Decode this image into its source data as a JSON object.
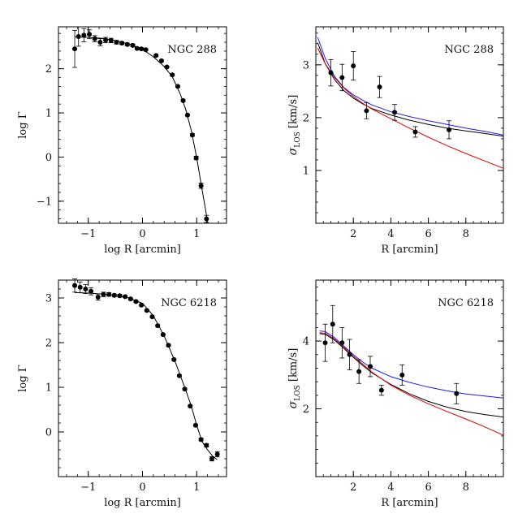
{
  "chart_data": [
    {
      "id": "ngc288-profile",
      "type": "scatter",
      "label": "NGC 288",
      "xlabel": "log R [arcmin]",
      "ylabel": "log Γ",
      "xlim": [
        -1.55,
        1.55
      ],
      "ylim": [
        -1.5,
        2.95
      ],
      "xticks": [
        -1,
        0,
        1
      ],
      "yticks": [
        -1,
        0,
        1,
        2
      ],
      "series": [
        {
          "points": [
            {
              "x": -1.25,
              "y": 2.45,
              "err": 0.42
            },
            {
              "x": -1.18,
              "y": 2.73,
              "err": 0.22
            },
            {
              "x": -1.08,
              "y": 2.76,
              "err": 0.15
            },
            {
              "x": -0.98,
              "y": 2.78,
              "err": 0.1
            },
            {
              "x": -0.88,
              "y": 2.68,
              "err": 0.07
            },
            {
              "x": -0.78,
              "y": 2.6,
              "err": 0.08
            },
            {
              "x": -0.68,
              "y": 2.65,
              "err": 0.06
            },
            {
              "x": -0.58,
              "y": 2.64,
              "err": 0.05
            },
            {
              "x": -0.48,
              "y": 2.6,
              "err": 0.04
            },
            {
              "x": -0.38,
              "y": 2.58,
              "err": 0.03
            },
            {
              "x": -0.28,
              "y": 2.55,
              "err": 0.03
            },
            {
              "x": -0.18,
              "y": 2.53,
              "err": 0.03
            },
            {
              "x": -0.1,
              "y": 2.46,
              "err": 0.02
            },
            {
              "x": -0.02,
              "y": 2.45,
              "err": 0.02
            },
            {
              "x": 0.06,
              "y": 2.43,
              "err": 0.02
            },
            {
              "x": 0.25,
              "y": 2.3,
              "err": 0.02
            },
            {
              "x": 0.35,
              "y": 2.18,
              "err": 0.02
            },
            {
              "x": 0.45,
              "y": 2.04,
              "err": 0.02
            },
            {
              "x": 0.55,
              "y": 1.86,
              "err": 0.02
            },
            {
              "x": 0.65,
              "y": 1.6,
              "err": 0.02
            },
            {
              "x": 0.75,
              "y": 1.28,
              "err": 0.02
            },
            {
              "x": 0.83,
              "y": 0.95,
              "err": 0.02
            },
            {
              "x": 0.92,
              "y": 0.5,
              "err": 0.03
            },
            {
              "x": 0.99,
              "y": -0.02,
              "err": 0.04
            },
            {
              "x": 1.08,
              "y": -0.65,
              "err": 0.06
            },
            {
              "x": 1.18,
              "y": -1.4,
              "err": 0.08
            }
          ],
          "model": {
            "color": "#000000",
            "x": [
              -1.25,
              -1.0,
              -0.75,
              -0.5,
              -0.25,
              0.0,
              0.2,
              0.4,
              0.55,
              0.7,
              0.8,
              0.9,
              1.0,
              1.1,
              1.2
            ],
            "y": [
              2.72,
              2.71,
              2.69,
              2.64,
              2.56,
              2.44,
              2.27,
              2.05,
              1.82,
              1.42,
              1.07,
              0.6,
              -0.02,
              -0.75,
              -1.45
            ]
          }
        }
      ]
    },
    {
      "id": "ngc288-dispersion",
      "type": "scatter",
      "label": "NGC 288",
      "xlabel": "R [arcmin]",
      "ylabel_sym": "σ",
      "ylabel_sub": "LOS",
      "ylabel_rest": " [km/s]",
      "xlim": [
        0,
        10
      ],
      "ylim": [
        0,
        3.72
      ],
      "xticks": [
        2,
        4,
        6,
        8
      ],
      "yticks": [
        1,
        2,
        3
      ],
      "series": [
        {
          "points": [
            {
              "x": 0.8,
              "y": 2.85,
              "err": 0.25
            },
            {
              "x": 1.4,
              "y": 2.76,
              "err": 0.25
            },
            {
              "x": 2.0,
              "y": 2.98,
              "err": 0.27
            },
            {
              "x": 2.7,
              "y": 2.13,
              "err": 0.15
            },
            {
              "x": 3.4,
              "y": 2.58,
              "err": 0.2
            },
            {
              "x": 4.2,
              "y": 2.1,
              "err": 0.15
            },
            {
              "x": 5.3,
              "y": 1.73,
              "err": 0.1
            },
            {
              "x": 7.1,
              "y": 1.77,
              "err": 0.17
            }
          ]
        },
        {
          "name": "",
          "color": "#1a1aff",
          "x": [
            0.1,
            0.5,
            1,
            1.5,
            2,
            2.5,
            3,
            4,
            5,
            6,
            7,
            8,
            9,
            10
          ],
          "y": [
            3.52,
            3.12,
            2.78,
            2.57,
            2.43,
            2.33,
            2.24,
            2.11,
            2.02,
            1.94,
            1.87,
            1.8,
            1.74,
            1.67
          ]
        },
        {
          "name": "",
          "color": "#000000",
          "x": [
            0.1,
            0.5,
            1,
            1.5,
            2,
            2.5,
            3,
            4,
            5,
            6,
            7,
            8,
            9,
            10
          ],
          "y": [
            3.42,
            3.02,
            2.72,
            2.51,
            2.37,
            2.26,
            2.17,
            2.05,
            1.95,
            1.87,
            1.8,
            1.75,
            1.7,
            1.65
          ]
        },
        {
          "name": "",
          "color": "#e00000",
          "x": [
            0.1,
            0.5,
            1,
            1.5,
            2,
            2.5,
            3,
            4,
            5,
            6,
            7,
            8,
            9,
            10
          ],
          "y": [
            3.32,
            3.02,
            2.76,
            2.56,
            2.4,
            2.27,
            2.16,
            1.98,
            1.8,
            1.63,
            1.47,
            1.32,
            1.18,
            1.04
          ]
        }
      ]
    },
    {
      "id": "ngc6218-profile",
      "type": "scatter",
      "label": "NGC 6218",
      "xlabel": "log R [arcmin]",
      "ylabel": "log Γ",
      "xlim": [
        -1.55,
        1.55
      ],
      "ylim": [
        -1.0,
        3.4
      ],
      "xticks": [
        -1,
        0,
        1
      ],
      "yticks": [
        0,
        1,
        2,
        3
      ],
      "series": [
        {
          "points": [
            {
              "x": -1.25,
              "y": 3.28,
              "err": 0.15
            },
            {
              "x": -1.15,
              "y": 3.24,
              "err": 0.12
            },
            {
              "x": -1.05,
              "y": 3.2,
              "err": 0.1
            },
            {
              "x": -0.95,
              "y": 3.15,
              "err": 0.08
            },
            {
              "x": -0.82,
              "y": 3.02,
              "err": 0.07
            },
            {
              "x": -0.72,
              "y": 3.08,
              "err": 0.05
            },
            {
              "x": -0.62,
              "y": 3.08,
              "err": 0.04
            },
            {
              "x": -0.52,
              "y": 3.06,
              "err": 0.03
            },
            {
              "x": -0.42,
              "y": 3.05,
              "err": 0.03
            },
            {
              "x": -0.32,
              "y": 3.03,
              "err": 0.02
            },
            {
              "x": -0.22,
              "y": 2.98,
              "err": 0.02
            },
            {
              "x": -0.12,
              "y": 2.92,
              "err": 0.02
            },
            {
              "x": -0.02,
              "y": 2.84,
              "err": 0.02
            },
            {
              "x": 0.08,
              "y": 2.72,
              "err": 0.02
            },
            {
              "x": 0.18,
              "y": 2.58,
              "err": 0.02
            },
            {
              "x": 0.28,
              "y": 2.38,
              "err": 0.02
            },
            {
              "x": 0.38,
              "y": 2.18,
              "err": 0.02
            },
            {
              "x": 0.48,
              "y": 1.94,
              "err": 0.02
            },
            {
              "x": 0.58,
              "y": 1.62,
              "err": 0.02
            },
            {
              "x": 0.68,
              "y": 1.26,
              "err": 0.02
            },
            {
              "x": 0.78,
              "y": 0.96,
              "err": 0.02
            },
            {
              "x": 0.88,
              "y": 0.58,
              "err": 0.02
            },
            {
              "x": 0.98,
              "y": 0.15,
              "err": 0.02
            },
            {
              "x": 1.08,
              "y": -0.17,
              "err": 0.03
            },
            {
              "x": 1.18,
              "y": -0.3,
              "err": 0.04
            },
            {
              "x": 1.28,
              "y": -0.6,
              "err": 0.05
            },
            {
              "x": 1.38,
              "y": -0.5,
              "err": 0.06
            }
          ],
          "model": {
            "color": "#000000",
            "x": [
              -1.25,
              -1.0,
              -0.75,
              -0.5,
              -0.25,
              0.0,
              0.2,
              0.4,
              0.6,
              0.8,
              0.9,
              1.0,
              1.1,
              1.2,
              1.3,
              1.38
            ],
            "y": [
              3.12,
              3.11,
              3.09,
              3.06,
              3.0,
              2.88,
              2.6,
              2.15,
              1.58,
              0.93,
              0.58,
              0.15,
              -0.22,
              -0.4,
              -0.55,
              -0.62
            ]
          }
        }
      ]
    },
    {
      "id": "ngc6218-dispersion",
      "type": "scatter",
      "label": "NGC 6218",
      "xlabel": "R [arcmin]",
      "ylabel_sym": "σ",
      "ylabel_sub": "LOS",
      "ylabel_rest": " [km/s]",
      "xlim": [
        0,
        10
      ],
      "ylim": [
        0,
        5.8
      ],
      "xticks": [
        2,
        4,
        6,
        8
      ],
      "yticks": [
        2,
        4
      ],
      "series": [
        {
          "points": [
            {
              "x": 0.5,
              "y": 3.95,
              "err": 0.55
            },
            {
              "x": 0.9,
              "y": 4.5,
              "err": 0.55
            },
            {
              "x": 1.4,
              "y": 3.95,
              "err": 0.45
            },
            {
              "x": 1.8,
              "y": 3.6,
              "err": 0.45
            },
            {
              "x": 2.3,
              "y": 3.1,
              "err": 0.35
            },
            {
              "x": 2.9,
              "y": 3.25,
              "err": 0.3
            },
            {
              "x": 3.5,
              "y": 2.55,
              "err": 0.15
            },
            {
              "x": 4.6,
              "y": 3.0,
              "err": 0.3
            },
            {
              "x": 7.5,
              "y": 2.45,
              "err": 0.3
            }
          ]
        },
        {
          "name": "",
          "color": "#1a1aff",
          "x": [
            0.2,
            0.5,
            1,
            1.5,
            2,
            2.5,
            3,
            4,
            5,
            6,
            7,
            8,
            9,
            10
          ],
          "y": [
            4.3,
            4.28,
            4.1,
            3.85,
            3.6,
            3.38,
            3.2,
            2.95,
            2.78,
            2.64,
            2.53,
            2.44,
            2.38,
            2.32
          ]
        },
        {
          "name": "",
          "color": "#000000",
          "x": [
            0.2,
            0.5,
            1,
            1.5,
            2,
            2.5,
            3,
            4,
            5,
            6,
            7,
            8,
            9,
            10
          ],
          "y": [
            4.22,
            4.2,
            4.03,
            3.78,
            3.52,
            3.28,
            3.06,
            2.72,
            2.44,
            2.22,
            2.05,
            1.92,
            1.83,
            1.76
          ]
        },
        {
          "name": "",
          "color": "#e00000",
          "x": [
            0.2,
            0.5,
            1,
            1.5,
            2,
            2.5,
            3,
            4,
            5,
            6,
            7,
            8,
            9,
            10
          ],
          "y": [
            4.25,
            4.23,
            4.06,
            3.82,
            3.56,
            3.32,
            3.08,
            2.7,
            2.4,
            2.15,
            1.92,
            1.7,
            1.47,
            1.22
          ]
        }
      ]
    }
  ]
}
